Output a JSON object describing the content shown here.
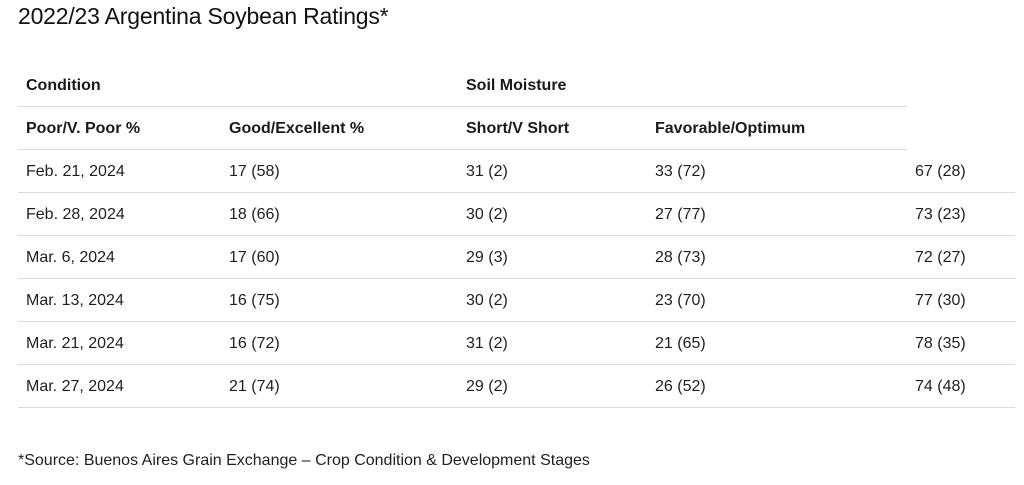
{
  "title": "2022/23 Argentina Soybean Ratings*",
  "group_headers": {
    "condition": "Condition",
    "soil_moisture": "Soil Moisture"
  },
  "column_headers": [
    "Poor/V. Poor %",
    "Good/Excellent %",
    "Short/V Short",
    "Favorable/Optimum"
  ],
  "rows": [
    [
      "Feb. 21, 2024",
      "17 (58)",
      "31 (2)",
      "33 (72)",
      "67 (28)"
    ],
    [
      "Feb. 28, 2024",
      "18 (66)",
      "30 (2)",
      "27 (77)",
      "73 (23)"
    ],
    [
      "Mar. 6, 2024",
      "17 (60)",
      "29 (3)",
      "28 (73)",
      "72 (27)"
    ],
    [
      "Mar. 13, 2024",
      "16 (75)",
      "30 (2)",
      "23 (70)",
      "77 (30)"
    ],
    [
      "Mar. 21, 2024",
      "16 (72)",
      "31 (2)",
      "21 (65)",
      "78 (35)"
    ],
    [
      "Mar. 27, 2024",
      "21 (74)",
      "29 (2)",
      "26 (52)",
      "74 (48)"
    ]
  ],
  "source": "*Source: Buenos Aires Grain Exchange – Crop Condition & Development Stages"
}
